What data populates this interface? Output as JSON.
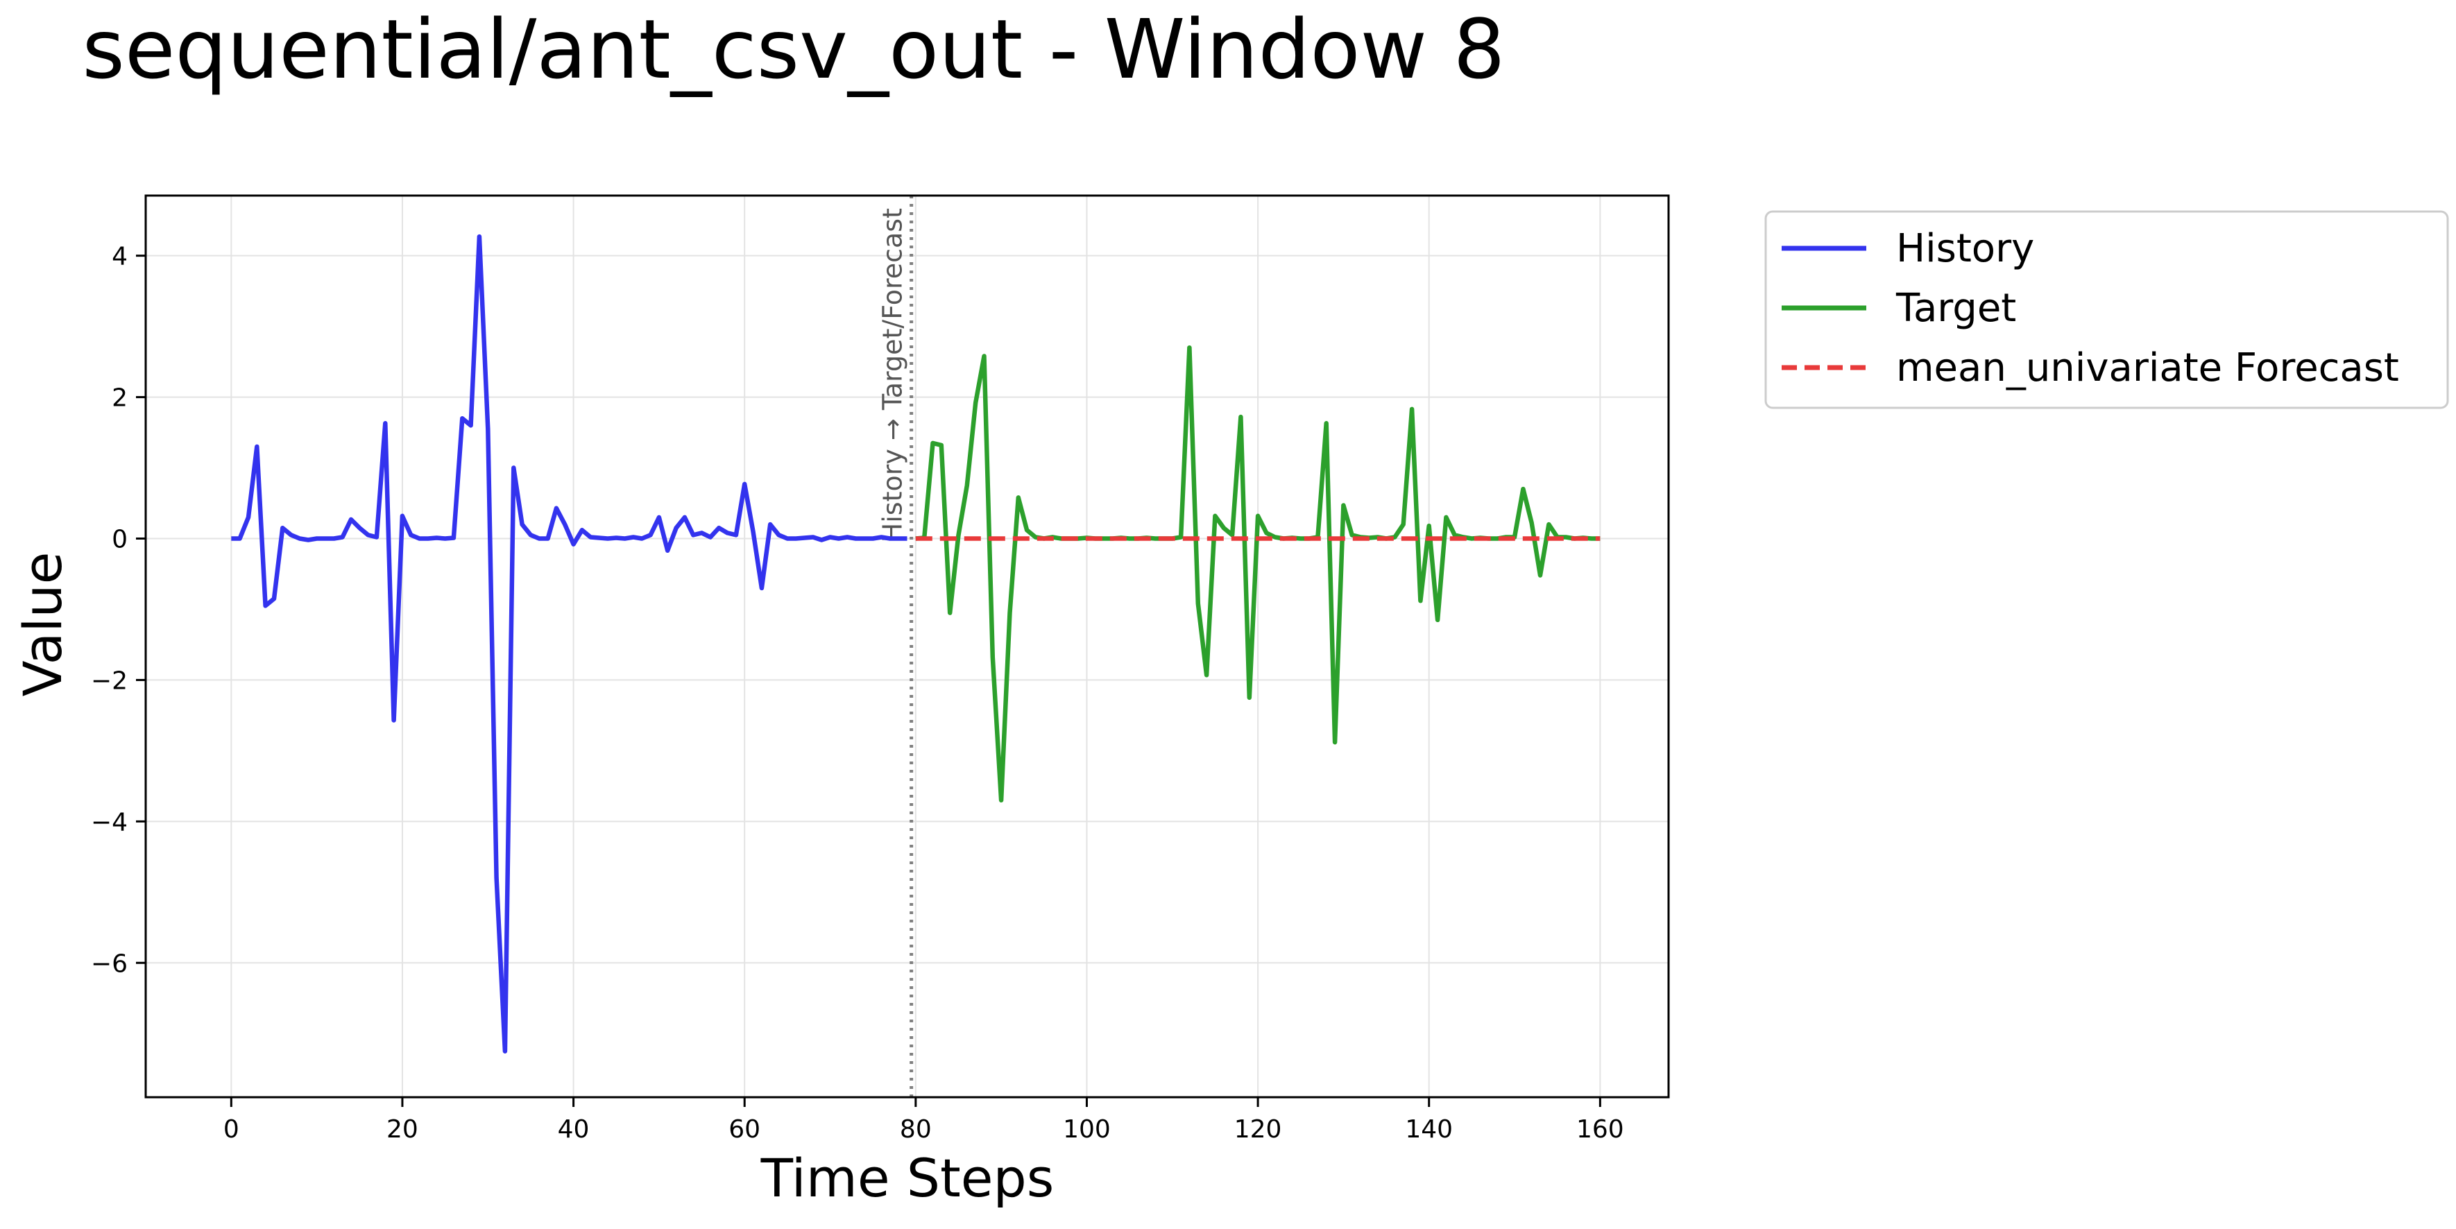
{
  "chart_data": {
    "type": "line",
    "title": "sequential/ant_csv_out - Window 8",
    "xlabel": "Time Steps",
    "ylabel": "Value",
    "xlim": [
      -10,
      168
    ],
    "ylim": [
      -7.9,
      4.85
    ],
    "xticks": [
      0,
      20,
      40,
      60,
      80,
      100,
      120,
      140,
      160
    ],
    "xtick_labels": [
      "0",
      "20",
      "40",
      "60",
      "80",
      "100",
      "120",
      "140",
      "160"
    ],
    "yticks": [
      -6,
      -4,
      -2,
      0,
      2,
      4
    ],
    "ytick_labels": [
      "−6",
      "−4",
      "−2",
      "0",
      "2",
      "4"
    ],
    "grid": true,
    "legend_placement": "outside-top-right",
    "divider": {
      "x": 79.5,
      "label": "History → Target/Forecast",
      "color": "#808080"
    },
    "series": [
      {
        "name": "History",
        "color": "#3333ee",
        "style": "solid",
        "x_start": 0,
        "values": [
          0,
          0,
          0.3,
          1.3,
          -0.95,
          -0.85,
          0.15,
          0.05,
          0,
          -0.02,
          0,
          0,
          0,
          0.02,
          0.27,
          0.15,
          0.05,
          0.02,
          1.63,
          -2.57,
          0.32,
          0.05,
          0,
          0,
          0.01,
          0,
          0.01,
          1.7,
          1.6,
          4.27,
          1.55,
          -4.8,
          -7.25,
          1.0,
          0.2,
          0.05,
          0,
          0,
          0.43,
          0.2,
          -0.08,
          0.12,
          0.02,
          0.01,
          0,
          0.01,
          0,
          0.02,
          0,
          0.05,
          0.3,
          -0.17,
          0.15,
          0.3,
          0.05,
          0.08,
          0.02,
          0.15,
          0.08,
          0.05,
          0.77,
          0.1,
          -0.7,
          0.2,
          0.05,
          0,
          0,
          0.01,
          0.02,
          -0.02,
          0.02,
          0,
          0.02,
          0,
          0,
          0,
          0.02,
          0,
          0,
          0
        ]
      },
      {
        "name": "Target",
        "color": "#2ca02c",
        "style": "solid",
        "x_start": 80,
        "values": [
          0,
          0.01,
          1.35,
          1.32,
          -1.05,
          0.05,
          0.75,
          1.92,
          2.58,
          -1.68,
          -3.7,
          -1.05,
          0.58,
          0.12,
          0.02,
          0,
          0.02,
          0,
          0,
          0,
          0.01,
          0,
          0,
          0,
          0.01,
          0,
          0,
          0.01,
          0,
          0,
          0,
          0.02,
          2.7,
          -0.92,
          -1.93,
          0.32,
          0.15,
          0.05,
          1.72,
          -2.25,
          0.32,
          0.08,
          0.02,
          0,
          0.01,
          0,
          0,
          0.02,
          1.63,
          -2.88,
          0.47,
          0.05,
          0.02,
          0.01,
          0.02,
          0,
          0.02,
          0.2,
          1.83,
          -0.88,
          0.18,
          -1.15,
          0.3,
          0.05,
          0.02,
          0,
          0.01,
          0,
          0,
          0.02,
          0.02,
          0.7,
          0.22,
          -0.52,
          0.2,
          0.02,
          0.02,
          0,
          0.01,
          0,
          0
        ]
      },
      {
        "name": "mean_univariate Forecast",
        "color": "#e83a3a",
        "style": "dashed",
        "x_start": 80,
        "x_end": 160,
        "constant_value": 0.0
      }
    ]
  }
}
